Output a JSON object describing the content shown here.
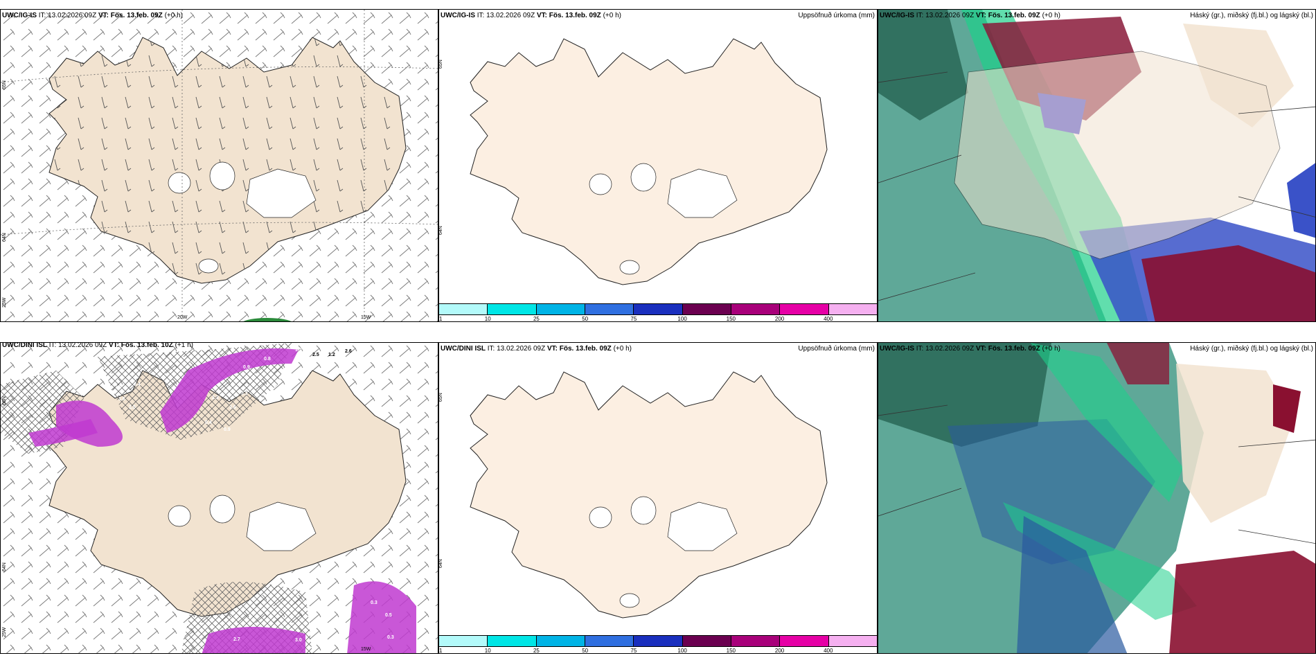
{
  "panels": [
    {
      "model": "UWC/IG-IS",
      "it": "13.02.2026 09Z",
      "vt": "Fös. 13.feb. 09Z",
      "lead": "(+0 h)",
      "title_right": "",
      "lon_labels": [
        "20W",
        "15W"
      ],
      "lat_labels": [
        "65N",
        "64N",
        "25W"
      ]
    },
    {
      "model": "UWC/IG-IS",
      "it": "13.02.2026 09Z",
      "vt": "Fös. 13.feb. 09Z",
      "lead": "(+0 h)",
      "title_right": "Uppsöfnuð úrkoma (mm)",
      "lat_labels": [
        "65N",
        "64N"
      ]
    },
    {
      "model": "UWC/IG-IS",
      "it": "13.02.2026 09Z",
      "vt": "Fös. 13.feb. 09Z",
      "lead": "(+0 h)",
      "title_right": "Háský (gr.), miðský (fj.bl.) og lágský (bl.)"
    },
    {
      "model": "UWC/DINI ISL",
      "it": "13.02.2026 09Z",
      "vt": "Fös. 13.feb. 10Z",
      "lead": "(+1 h)",
      "title_right": "",
      "lon_labels": [
        "15W"
      ],
      "lat_labels": [
        "66N",
        "64N",
        "25W"
      ]
    },
    {
      "model": "UWC/DINI ISL",
      "it": "13.02.2026 09Z",
      "vt": "Fös. 13.feb. 09Z",
      "lead": "(+0 h)",
      "title_right": "Uppsöfnuð úrkoma (mm)",
      "lat_labels": [
        "65N",
        "64N"
      ]
    },
    {
      "model": "UWC/IG-IS",
      "it": "13.02.2026 09Z",
      "vt": "Fös. 13.feb. 09Z",
      "lead": "(+0 h)",
      "title_right": "Háský (gr.), miðský (fj.bl.) og lágský (bl.)"
    }
  ],
  "legend": {
    "labels": [
      "1",
      "10",
      "25",
      "50",
      "75",
      "100",
      "150",
      "200",
      "400"
    ],
    "colors": [
      "#b3fafa",
      "#00e6e6",
      "#00b4e6",
      "#2f6fe0",
      "#1a2fbe",
      "#6b0050",
      "#a8007a",
      "#e600a6",
      "#f5b0f0"
    ]
  },
  "contour_labels": [
    "0.8",
    "1.2",
    "2.5",
    "1.2",
    "2.6",
    "0.9",
    "1.8",
    "0.4",
    "1.6",
    "2.5",
    "2.3",
    "3.3",
    "3.6",
    "0.4",
    "0.9",
    "2.7",
    "0.3",
    "0.5",
    "0.3",
    "3.0"
  ],
  "colors": {
    "land": "#f2e3d0",
    "land_light": "#fcefe2",
    "snow": "#ffffff",
    "precip": "#c03ad0",
    "cloud_low": "#2a9b82",
    "cloud_mid": "#2a4ab8",
    "cloud_high": "#7a1030",
    "water": "#ffffff"
  }
}
